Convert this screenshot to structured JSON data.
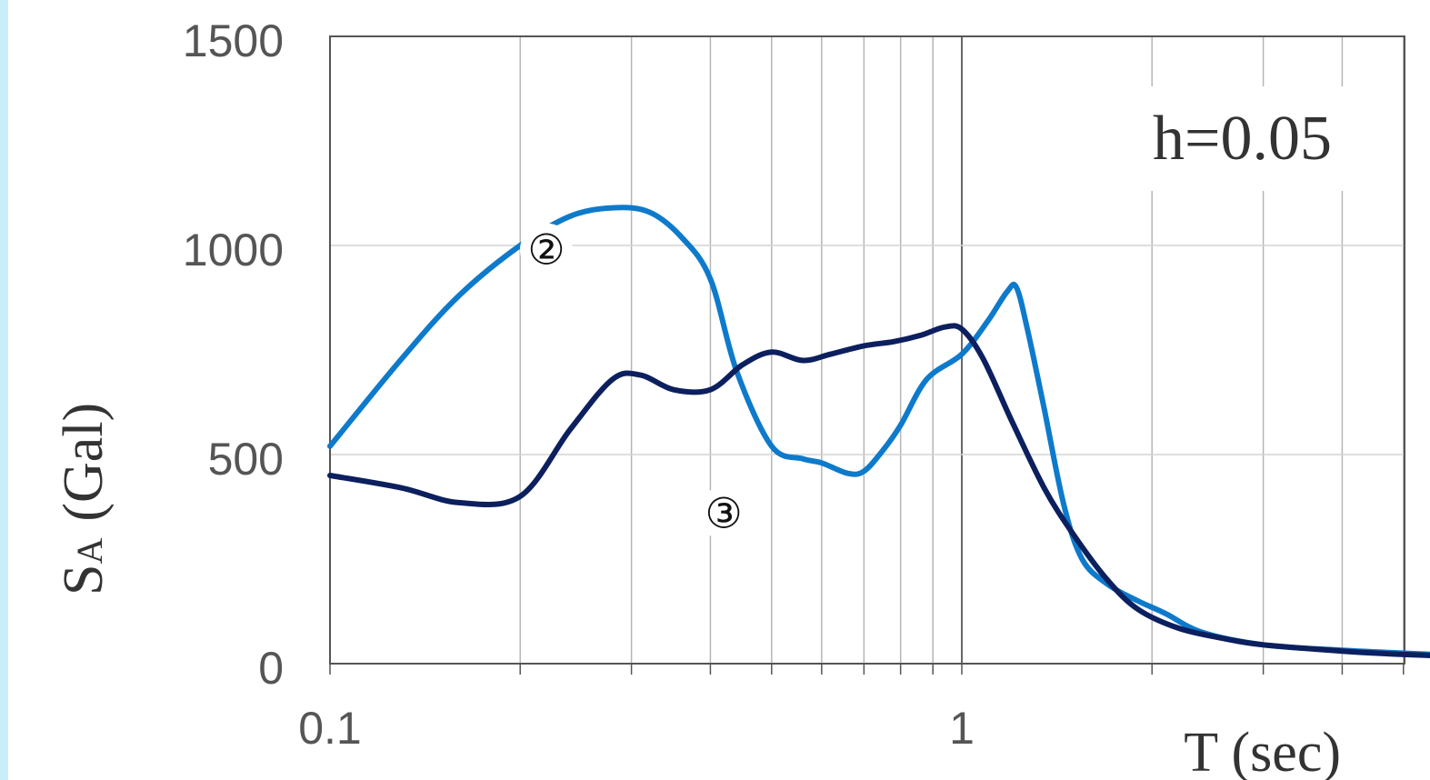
{
  "chart_data": {
    "type": "line",
    "title": "",
    "xlabel": "T (sec)",
    "ylabel": "SA (Gal)",
    "ylabel_main": "S",
    "ylabel_sub": "A",
    "ylabel_unit": "(Gal)",
    "annotation": "h=0.05",
    "xscale": "log",
    "xlim": [
      0.1,
      7.0
    ],
    "ylim": [
      0,
      1500
    ],
    "x_tick_labels": [
      "0.1",
      "1"
    ],
    "y_ticks": [
      0,
      500,
      1000,
      1500
    ],
    "y_tick_labels": [
      "0",
      "500",
      "1000",
      "1500"
    ],
    "grid": true,
    "legend": "none",
    "series": [
      {
        "name": "②",
        "color": "#0e7acb",
        "x": [
          0.1,
          0.13,
          0.16,
          0.2,
          0.24,
          0.28,
          0.32,
          0.36,
          0.4,
          0.44,
          0.5,
          0.56,
          0.6,
          0.66,
          0.7,
          0.75,
          0.8,
          0.88,
          1.0,
          1.1,
          1.18,
          1.22,
          1.27,
          1.35,
          1.45,
          1.55,
          1.7,
          1.9,
          2.1,
          2.4,
          3.0,
          4.0,
          5.0,
          6.0
        ],
        "y": [
          520,
          730,
          880,
          1000,
          1070,
          1090,
          1080,
          1020,
          920,
          700,
          520,
          490,
          480,
          455,
          460,
          510,
          570,
          680,
          740,
          820,
          890,
          900,
          800,
          610,
          380,
          250,
          190,
          150,
          120,
          75,
          45,
          32,
          25,
          20
        ]
      },
      {
        "name": "③",
        "color": "#0c1f5e",
        "x": [
          0.1,
          0.13,
          0.16,
          0.2,
          0.24,
          0.28,
          0.31,
          0.35,
          0.4,
          0.45,
          0.5,
          0.56,
          0.62,
          0.7,
          0.78,
          0.86,
          0.94,
          1.0,
          1.08,
          1.2,
          1.35,
          1.5,
          1.7,
          1.9,
          2.2,
          2.6,
          3.0,
          4.0,
          5.0,
          6.0
        ],
        "y": [
          450,
          420,
          385,
          400,
          560,
          680,
          690,
          655,
          655,
          715,
          745,
          725,
          740,
          760,
          770,
          785,
          805,
          800,
          730,
          580,
          420,
          310,
          200,
          130,
          85,
          60,
          45,
          30,
          22,
          18
        ]
      }
    ],
    "series_labels": [
      {
        "text": "②",
        "x": 0.22,
        "y": 990
      },
      {
        "text": "③",
        "x": 0.42,
        "y": 360
      }
    ]
  }
}
